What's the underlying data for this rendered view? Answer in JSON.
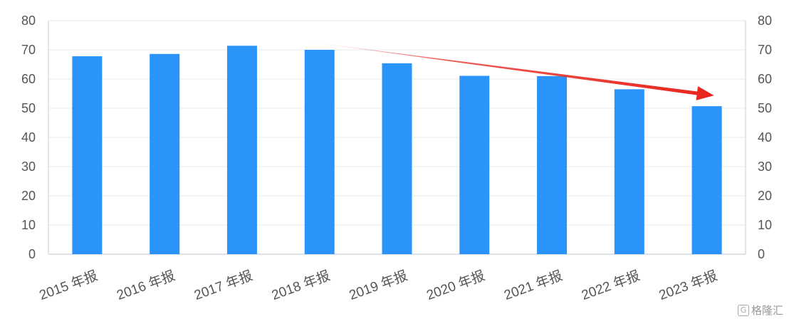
{
  "chart_data": {
    "type": "bar",
    "categories": [
      "2015 年报",
      "2016 年报",
      "2017 年报",
      "2018 年报",
      "2019 年报",
      "2020 年报",
      "2021 年报",
      "2022 年报",
      "2023 年报"
    ],
    "values": [
      67.8,
      68.6,
      71.4,
      70.0,
      65.4,
      61.1,
      61.0,
      56.5,
      50.7
    ],
    "ylim": [
      0,
      80
    ],
    "yticks": [
      0,
      10,
      20,
      30,
      40,
      50,
      60,
      70,
      80
    ],
    "secondary_yaxis": true,
    "bar_color": "#2b94fb",
    "grid": true,
    "annotation": {
      "type": "trend-arrow",
      "color": "#e8241c",
      "from": "2018 年报",
      "to": "2023 年报"
    }
  },
  "watermark": {
    "icon": "G",
    "text": "格隆汇"
  }
}
